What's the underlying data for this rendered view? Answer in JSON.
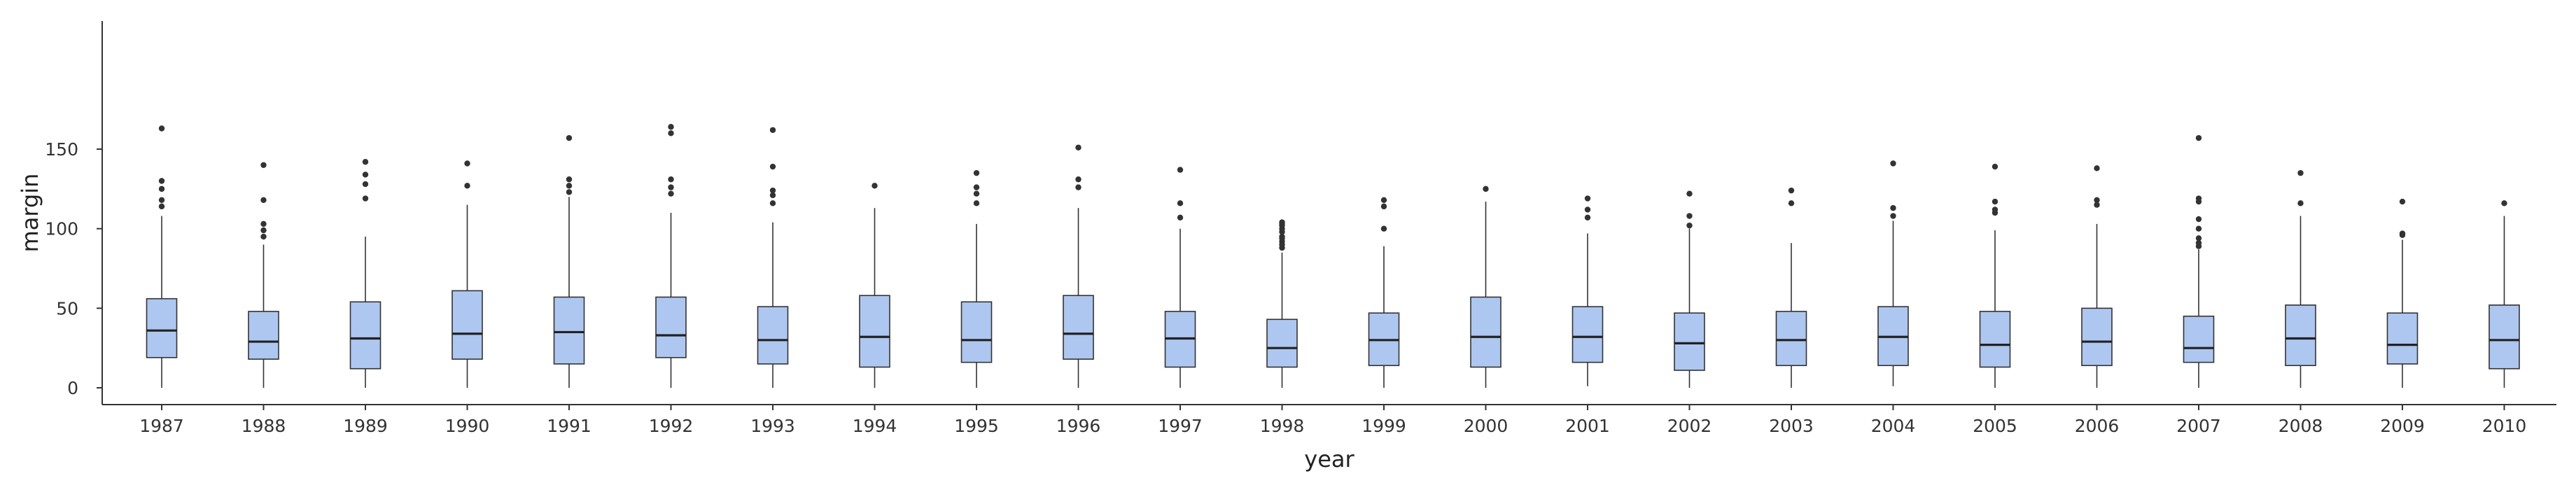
{
  "chart_data": {
    "type": "box",
    "title": "",
    "xlabel": "year",
    "ylabel": "margin",
    "ylim": [
      -8,
      172
    ],
    "yticks": [
      0,
      50,
      100,
      150
    ],
    "grid": false,
    "box_color": "#aec7f0",
    "line_color": "#333333",
    "categories": [
      "1987",
      "1988",
      "1989",
      "1990",
      "1991",
      "1992",
      "1993",
      "1994",
      "1995",
      "1996",
      "1997",
      "1998",
      "1999",
      "2000",
      "2001",
      "2002",
      "2003",
      "2004",
      "2005",
      "2006",
      "2007",
      "2008",
      "2009",
      "2010"
    ],
    "boxes": [
      {
        "year": "1987",
        "min": 0,
        "q1": 19,
        "median": 36,
        "q3": 56,
        "max": 108,
        "outliers": [
          114,
          118,
          125,
          130,
          163
        ]
      },
      {
        "year": "1988",
        "min": 0,
        "q1": 18,
        "median": 29,
        "q3": 48,
        "max": 90,
        "outliers": [
          95,
          99,
          103,
          118,
          140
        ]
      },
      {
        "year": "1989",
        "min": 0,
        "q1": 12,
        "median": 31,
        "q3": 54,
        "max": 95,
        "outliers": [
          119,
          128,
          134,
          142
        ]
      },
      {
        "year": "1990",
        "min": 0,
        "q1": 18,
        "median": 34,
        "q3": 61,
        "max": 115,
        "outliers": [
          127,
          141
        ]
      },
      {
        "year": "1991",
        "min": 0,
        "q1": 15,
        "median": 35,
        "q3": 57,
        "max": 120,
        "outliers": [
          123,
          127,
          131,
          157
        ]
      },
      {
        "year": "1992",
        "min": 0,
        "q1": 19,
        "median": 33,
        "q3": 57,
        "max": 110,
        "outliers": [
          122,
          126,
          131,
          160,
          164
        ]
      },
      {
        "year": "1993",
        "min": 0,
        "q1": 15,
        "median": 30,
        "q3": 51,
        "max": 104,
        "outliers": [
          116,
          121,
          124,
          139,
          162
        ]
      },
      {
        "year": "1994",
        "min": 0,
        "q1": 13,
        "median": 32,
        "q3": 58,
        "max": 113,
        "outliers": [
          127
        ]
      },
      {
        "year": "1995",
        "min": 0,
        "q1": 16,
        "median": 30,
        "q3": 54,
        "max": 103,
        "outliers": [
          116,
          122,
          126,
          135
        ]
      },
      {
        "year": "1996",
        "min": 0,
        "q1": 18,
        "median": 34,
        "q3": 58,
        "max": 113,
        "outliers": [
          126,
          131,
          151
        ]
      },
      {
        "year": "1997",
        "min": 0,
        "q1": 13,
        "median": 31,
        "q3": 48,
        "max": 100,
        "outliers": [
          107,
          116,
          137
        ]
      },
      {
        "year": "1998",
        "min": 0,
        "q1": 13,
        "median": 25,
        "q3": 43,
        "max": 85,
        "outliers": [
          88,
          90,
          92,
          94,
          95,
          98,
          100,
          102,
          103,
          104
        ]
      },
      {
        "year": "1999",
        "min": 0,
        "q1": 14,
        "median": 30,
        "q3": 47,
        "max": 89,
        "outliers": [
          100,
          114,
          118
        ]
      },
      {
        "year": "2000",
        "min": 0,
        "q1": 13,
        "median": 32,
        "q3": 57,
        "max": 117,
        "outliers": [
          125
        ]
      },
      {
        "year": "2001",
        "min": 1,
        "q1": 16,
        "median": 32,
        "q3": 51,
        "max": 97,
        "outliers": [
          107,
          112,
          119
        ]
      },
      {
        "year": "2002",
        "min": 0,
        "q1": 11,
        "median": 28,
        "q3": 47,
        "max": 100,
        "outliers": [
          102,
          108,
          122
        ]
      },
      {
        "year": "2003",
        "min": 0,
        "q1": 14,
        "median": 30,
        "q3": 48,
        "max": 91,
        "outliers": [
          116,
          124
        ]
      },
      {
        "year": "2004",
        "min": 1,
        "q1": 14,
        "median": 32,
        "q3": 51,
        "max": 105,
        "outliers": [
          108,
          113,
          141
        ]
      },
      {
        "year": "2005",
        "min": 0,
        "q1": 13,
        "median": 27,
        "q3": 48,
        "max": 99,
        "outliers": [
          110,
          112,
          117,
          139
        ]
      },
      {
        "year": "2006",
        "min": 0,
        "q1": 14,
        "median": 29,
        "q3": 50,
        "max": 103,
        "outliers": [
          115,
          118,
          138
        ]
      },
      {
        "year": "2007",
        "min": 0,
        "q1": 16,
        "median": 25,
        "q3": 45,
        "max": 87,
        "outliers": [
          89,
          91,
          94,
          100,
          106,
          117,
          119,
          157
        ]
      },
      {
        "year": "2008",
        "min": 0,
        "q1": 14,
        "median": 31,
        "q3": 52,
        "max": 108,
        "outliers": [
          116,
          135
        ]
      },
      {
        "year": "2009",
        "min": 0,
        "q1": 15,
        "median": 27,
        "q3": 47,
        "max": 93,
        "outliers": [
          96,
          97,
          117
        ]
      },
      {
        "year": "2010",
        "min": 0,
        "q1": 12,
        "median": 30,
        "q3": 52,
        "max": 108,
        "outliers": [
          116
        ]
      }
    ]
  }
}
